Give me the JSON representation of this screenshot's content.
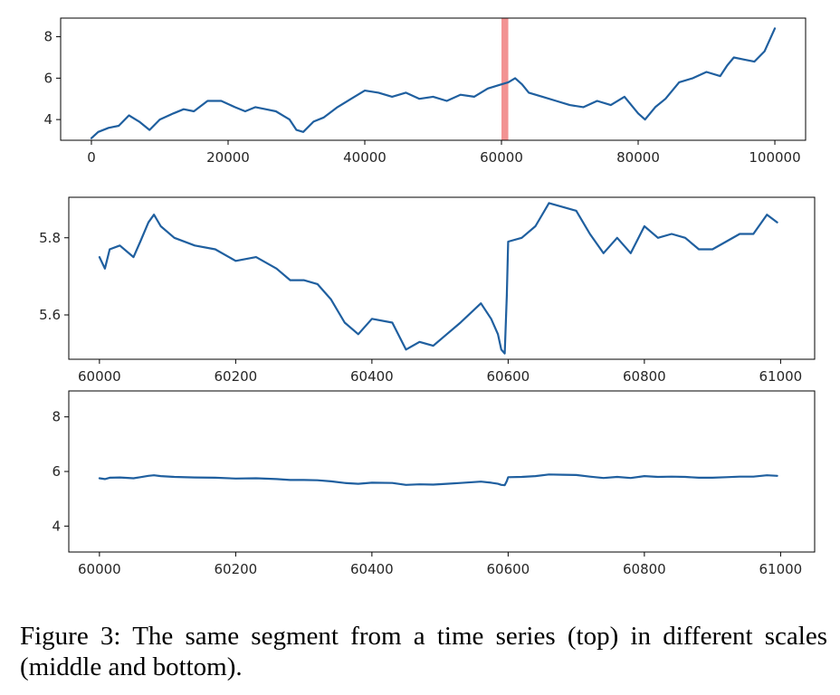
{
  "caption": "Figure 3: The same segment from a time series (top) in different scales (middle and bottom).",
  "line_color": "#1f5f9f",
  "highlight_color": "#f08080",
  "chart_data": [
    {
      "type": "line",
      "xlim": [
        -4500,
        104500
      ],
      "ylim": [
        3.0,
        8.9
      ],
      "xticks": [
        0,
        20000,
        40000,
        60000,
        80000,
        100000
      ],
      "yticks": [
        4,
        6,
        8
      ],
      "x_tick_labels": [
        "0",
        "20000",
        "40000",
        "60000",
        "80000",
        "100000"
      ],
      "y_tick_labels": [
        "4",
        "6",
        "8"
      ],
      "highlight_span": [
        60000,
        61000
      ],
      "series": [
        {
          "x": [
            0,
            1000,
            2500,
            4000,
            5500,
            7000,
            8500,
            10000,
            12000,
            13500,
            15000,
            17000,
            19000,
            21000,
            22500,
            24000,
            25500,
            27000,
            29000,
            30000,
            31000,
            32500,
            34000,
            36000,
            38000,
            40000,
            42000,
            44000,
            46000,
            48000,
            50000,
            52000,
            54000,
            56000,
            58000,
            60000,
            61000,
            62000,
            63000,
            64000,
            66000,
            68000,
            70000,
            72000,
            74000,
            76000,
            78000,
            80000,
            81000,
            82500,
            84000,
            86000,
            88000,
            90000,
            92000,
            93000,
            94000,
            95500,
            97000,
            98500,
            100000
          ],
          "y": [
            3.1,
            3.4,
            3.6,
            3.7,
            4.2,
            3.9,
            3.5,
            4.0,
            4.3,
            4.5,
            4.4,
            4.9,
            4.9,
            4.6,
            4.4,
            4.6,
            4.5,
            4.4,
            4.0,
            3.5,
            3.4,
            3.9,
            4.1,
            4.6,
            5.0,
            5.4,
            5.3,
            5.1,
            5.3,
            5.0,
            5.1,
            4.9,
            5.2,
            5.1,
            5.5,
            5.7,
            5.8,
            6.0,
            5.7,
            5.3,
            5.1,
            4.9,
            4.7,
            4.6,
            4.9,
            4.7,
            5.1,
            4.3,
            4.0,
            4.6,
            5.0,
            5.8,
            6.0,
            6.3,
            6.1,
            6.6,
            7.0,
            6.9,
            6.8,
            7.3,
            8.4
          ]
        }
      ]
    },
    {
      "type": "line",
      "xlim": [
        59955,
        61050
      ],
      "ylim": [
        5.485,
        5.905
      ],
      "xticks": [
        60000,
        60200,
        60400,
        60600,
        60800,
        61000
      ],
      "yticks": [
        5.6,
        5.8
      ],
      "x_tick_labels": [
        "60000",
        "60200",
        "60400",
        "60600",
        "60800",
        "61000"
      ],
      "y_tick_labels": [
        "5.6",
        "5.8"
      ],
      "series": [
        {
          "x": [
            60000,
            60008,
            60015,
            60030,
            60050,
            60060,
            60072,
            60080,
            60090,
            60110,
            60140,
            60170,
            60200,
            60230,
            60260,
            60280,
            60300,
            60320,
            60340,
            60360,
            60380,
            60400,
            60430,
            60450,
            60470,
            60490,
            60510,
            60530,
            60560,
            60575,
            60585,
            60590,
            60595,
            60598,
            60600,
            60620,
            60640,
            60660,
            60680,
            60700,
            60720,
            60740,
            60760,
            60780,
            60800,
            60820,
            60840,
            60860,
            60880,
            60900,
            60920,
            60940,
            60960,
            60980,
            60995
          ],
          "y": [
            5.75,
            5.72,
            5.77,
            5.78,
            5.75,
            5.79,
            5.84,
            5.86,
            5.83,
            5.8,
            5.78,
            5.77,
            5.74,
            5.75,
            5.72,
            5.69,
            5.69,
            5.68,
            5.64,
            5.58,
            5.55,
            5.59,
            5.58,
            5.51,
            5.53,
            5.52,
            5.55,
            5.58,
            5.63,
            5.59,
            5.55,
            5.51,
            5.5,
            5.65,
            5.79,
            5.8,
            5.83,
            5.89,
            5.88,
            5.87,
            5.81,
            5.76,
            5.8,
            5.76,
            5.83,
            5.8,
            5.81,
            5.8,
            5.77,
            5.77,
            5.79,
            5.81,
            5.81,
            5.86,
            5.84
          ]
        }
      ]
    },
    {
      "type": "line",
      "xlim": [
        59955,
        61050
      ],
      "ylim": [
        3.05,
        8.95
      ],
      "xticks": [
        60000,
        60200,
        60400,
        60600,
        60800,
        61000
      ],
      "yticks": [
        4,
        6,
        8
      ],
      "x_tick_labels": [
        "60000",
        "60200",
        "60400",
        "60600",
        "60800",
        "61000"
      ],
      "y_tick_labels": [
        "4",
        "6",
        "8"
      ],
      "series": [
        {
          "x": [
            60000,
            60008,
            60015,
            60030,
            60050,
            60060,
            60072,
            60080,
            60090,
            60110,
            60140,
            60170,
            60200,
            60230,
            60260,
            60280,
            60300,
            60320,
            60340,
            60360,
            60380,
            60400,
            60430,
            60450,
            60470,
            60490,
            60510,
            60530,
            60560,
            60575,
            60585,
            60590,
            60595,
            60598,
            60600,
            60620,
            60640,
            60660,
            60680,
            60700,
            60720,
            60740,
            60760,
            60780,
            60800,
            60820,
            60840,
            60860,
            60880,
            60900,
            60920,
            60940,
            60960,
            60980,
            60995
          ],
          "y": [
            5.75,
            5.72,
            5.77,
            5.78,
            5.75,
            5.79,
            5.84,
            5.86,
            5.83,
            5.8,
            5.78,
            5.77,
            5.74,
            5.75,
            5.72,
            5.69,
            5.69,
            5.68,
            5.64,
            5.58,
            5.55,
            5.59,
            5.58,
            5.51,
            5.53,
            5.52,
            5.55,
            5.58,
            5.63,
            5.59,
            5.55,
            5.51,
            5.5,
            5.65,
            5.79,
            5.8,
            5.83,
            5.89,
            5.88,
            5.87,
            5.81,
            5.76,
            5.8,
            5.76,
            5.83,
            5.8,
            5.81,
            5.8,
            5.77,
            5.77,
            5.79,
            5.81,
            5.81,
            5.86,
            5.84
          ]
        }
      ]
    }
  ]
}
